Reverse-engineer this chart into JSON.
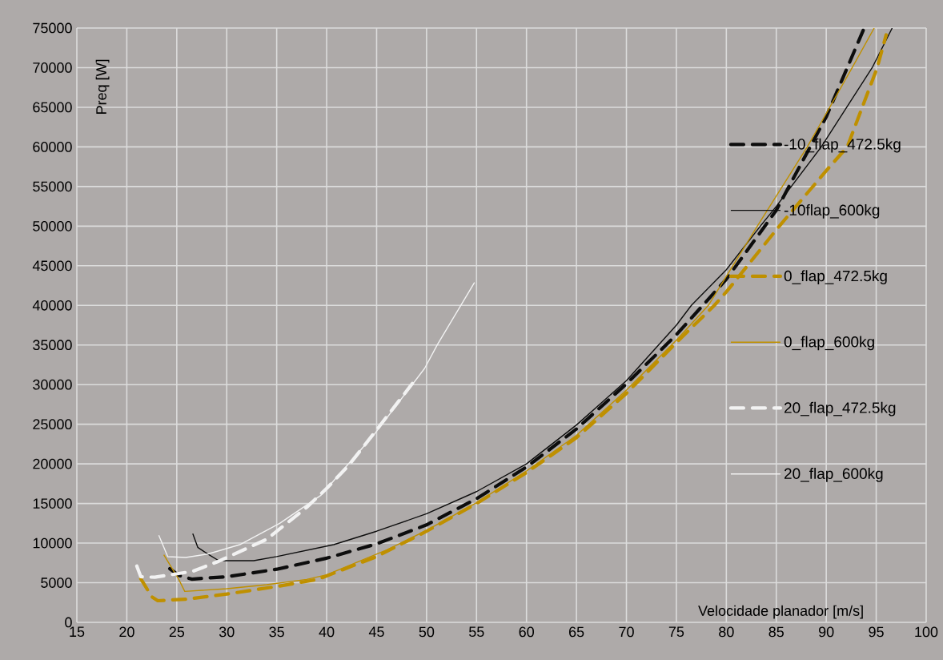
{
  "chart_data": {
    "type": "line",
    "xlabel": "Velocidade planador [m/s]",
    "ylabel": "Preq [W]",
    "xlim": [
      15,
      100
    ],
    "xticks": [
      15,
      20,
      25,
      30,
      35,
      40,
      45,
      50,
      55,
      60,
      65,
      70,
      75,
      80,
      85,
      90,
      95,
      100
    ],
    "ylim": [
      0,
      75000
    ],
    "yticks": [
      0,
      5000,
      10000,
      15000,
      20000,
      25000,
      30000,
      35000,
      40000,
      45000,
      50000,
      55000,
      60000,
      65000,
      70000,
      75000
    ],
    "grid": true,
    "legend": "right",
    "series": [
      {
        "name": "-10_flap_472.5kg",
        "color": "#0d0d0d",
        "line_style": "dashed",
        "x": [
          24.3,
          25.2,
          26.5,
          30,
          35,
          40,
          45,
          50,
          55,
          60,
          65,
          70,
          75,
          80,
          85,
          90,
          93.8
        ],
        "values": [
          6770,
          5930,
          5450,
          5760,
          6700,
          8100,
          9900,
          12300,
          15600,
          19600,
          24400,
          30100,
          36300,
          43300,
          52000,
          63800,
          75000
        ]
      },
      {
        "name": "-10flap_600kg",
        "color": "#0d0d0d",
        "line_style": "solid",
        "x": [
          26.6,
          27.1,
          28.1,
          29.2,
          32.7,
          35,
          40.7,
          45,
          50,
          55,
          60,
          65,
          70,
          75,
          76.5,
          80,
          83.4,
          85,
          89.5,
          94.6,
          96.6
        ],
        "values": [
          11200,
          9470,
          8620,
          7780,
          7780,
          8300,
          9800,
          11500,
          13700,
          16500,
          20000,
          24900,
          30500,
          37500,
          40000,
          44500,
          50000,
          52500,
          60000,
          70000,
          75000
        ]
      },
      {
        "name": "0_flap_472.5kg",
        "color": "#bf9000",
        "line_style": "dashed",
        "x": [
          21.4,
          22.5,
          23.1,
          26,
          30,
          35.3,
          39.1,
          45,
          50,
          55,
          60,
          65,
          70,
          75,
          78.8,
          80,
          85.3,
          90,
          92.1,
          95.1,
          96.0
        ],
        "values": [
          5500,
          3230,
          2730,
          2930,
          3570,
          4580,
          5420,
          8300,
          11500,
          15000,
          18900,
          23300,
          28900,
          35300,
          40000,
          41700,
          50000,
          57000,
          60000,
          70000,
          74150
        ]
      },
      {
        "name": "0_flap_600kg",
        "color": "#bf9000",
        "line_style": "solid",
        "x": [
          23.7,
          25.2,
          25.8,
          30,
          34,
          38,
          40,
          46,
          50,
          55,
          60,
          65,
          70,
          75,
          78.2,
          83.1,
          88.1,
          92.6,
          94.8
        ],
        "values": [
          8520,
          5420,
          3900,
          4250,
          4750,
          5420,
          6000,
          9130,
          11600,
          15100,
          19100,
          23600,
          29300,
          35600,
          40000,
          50000,
          60000,
          70000,
          75000
        ]
      },
      {
        "name": "20_flap_472.5kg",
        "color": "#f2f2f2",
        "line_style": "dashed",
        "x": [
          21.0,
          21.4,
          22.8,
          26.6,
          29.2,
          34,
          38,
          40,
          42.2,
          45,
          48.7
        ],
        "values": [
          7100,
          5760,
          5690,
          6440,
          7710,
          10480,
          14510,
          16900,
          19800,
          24290,
          30340
        ]
      },
      {
        "name": "20_flap_600kg",
        "color": "#f2f2f2",
        "line_style": "solid",
        "x": [
          23.2,
          24.1,
          25.9,
          28.1,
          31.3,
          35.3,
          39.4,
          44.7,
          49.8,
          51.1,
          54.8
        ],
        "values": [
          10990,
          8290,
          8190,
          8620,
          9800,
          12500,
          16000,
          23620,
          32040,
          35080,
          42890
        ]
      }
    ]
  }
}
